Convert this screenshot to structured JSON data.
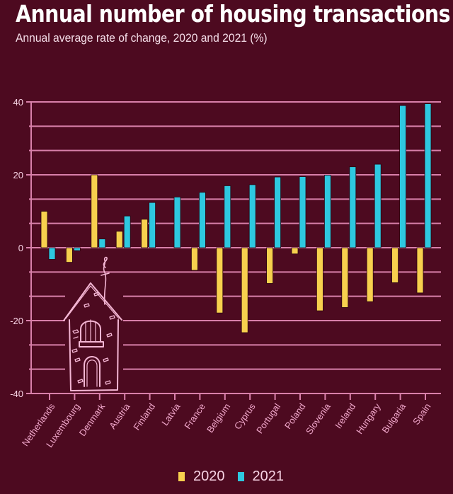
{
  "chart_data": {
    "type": "bar",
    "title": "Annual number of housing transactions",
    "subtitle": "Annual average rate of change, 2020 and 2021 (%)",
    "xlabel": "",
    "ylabel": "",
    "ylim": [
      -40,
      40
    ],
    "yticks": [
      40,
      20,
      0,
      -20,
      -40
    ],
    "ytick_labels": [
      "40",
      "20",
      "0",
      "-20",
      "-40"
    ],
    "minor_grid_step": 6.67,
    "grid": true,
    "legend_position": "bottom-center",
    "categories": [
      "Netherlands",
      "Luxembourg",
      "Denmark",
      "Austria",
      "Finland",
      "Latvia",
      "France",
      "Belgium",
      "Cyprus",
      "Portugal",
      "Poland",
      "Slovenia",
      "Ireland",
      "Hungary",
      "Bulgaria",
      "Spain"
    ],
    "series": [
      {
        "name": "2020",
        "color": "#f7d04e",
        "values": [
          10.0,
          -4.0,
          20.0,
          4.5,
          7.8,
          0.0,
          -6.2,
          -17.9,
          -23.3,
          -9.8,
          -1.7,
          -17.3,
          -16.4,
          -14.8,
          -9.6,
          -12.4
        ]
      },
      {
        "name": "2021",
        "color": "#2ec8e0",
        "values": [
          -3.2,
          -0.8,
          2.4,
          8.7,
          12.4,
          13.9,
          15.2,
          17.0,
          17.3,
          19.4,
          19.5,
          19.9,
          22.2,
          22.9,
          39.0,
          39.5
        ]
      }
    ],
    "annotations": [
      "house illustration (decorative)"
    ]
  },
  "colors": {
    "background": "#4d0a20",
    "grid": "#d980aa",
    "axis_label": "#f2a8cc"
  }
}
